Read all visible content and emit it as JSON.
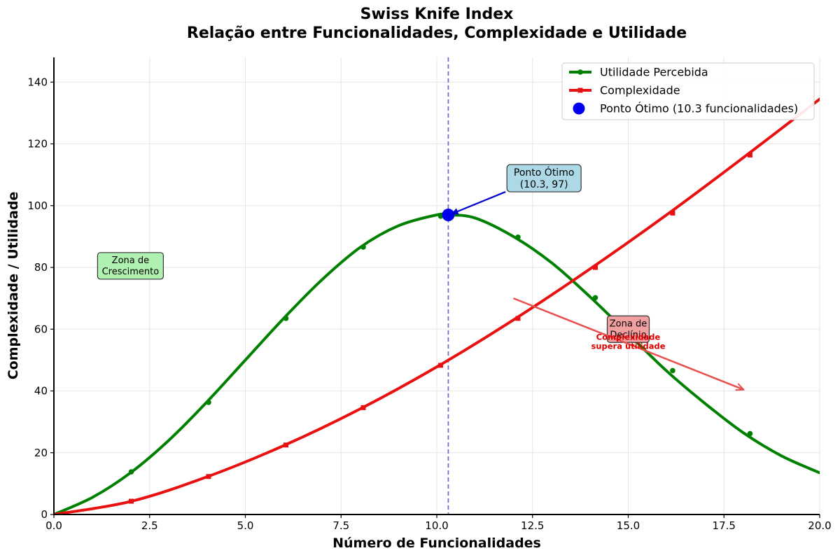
{
  "chart_data": {
    "type": "line",
    "title": [
      "Swiss Knife Index",
      "Relação entre Funcionalidades, Complexidade e Utilidade"
    ],
    "xlabel": "Número de Funcionalidades",
    "ylabel": "Complexidade / Utilidade",
    "xlim": [
      0,
      20
    ],
    "ylim": [
      0,
      148
    ],
    "xticks": [
      0,
      2.5,
      5,
      7.5,
      10,
      12.5,
      15,
      17.5,
      20
    ],
    "xtick_labels": [
      "0.0",
      "2.5",
      "5.0",
      "7.5",
      "10.0",
      "12.5",
      "15.0",
      "17.5",
      "20.0"
    ],
    "yticks": [
      0,
      20,
      40,
      60,
      80,
      100,
      120,
      140
    ],
    "ytick_labels": [
      "0",
      "20",
      "40",
      "60",
      "80",
      "100",
      "120",
      "140"
    ],
    "grid": true,
    "legend_position": "top-right",
    "series": [
      {
        "name": "Utilidade Percebida",
        "color": "#008000",
        "marker": "circle",
        "x": [
          0,
          1,
          2,
          3,
          4,
          5,
          6,
          7,
          8,
          9,
          10,
          10.3,
          11,
          12,
          13,
          14,
          15,
          16,
          17,
          18,
          19,
          20
        ],
        "y": [
          0,
          5.5,
          13.5,
          24,
          36.5,
          50,
          63.5,
          76,
          86.5,
          93.5,
          97,
          97,
          96,
          90,
          81.5,
          70.5,
          58.5,
          46.5,
          36,
          26.5,
          19,
          13.5
        ],
        "marker_x": [
          2.02,
          4.04,
          6.06,
          8.08,
          10.1,
          12.12,
          14.14,
          16.16,
          18.18
        ],
        "marker_y": [
          13.8,
          36.3,
          63.5,
          86.6,
          96.6,
          89.8,
          70.2,
          46.6,
          26.2
        ]
      },
      {
        "name": "Complexidade",
        "color": "#e81010",
        "marker": "square",
        "x": [
          0,
          2,
          4,
          6,
          8,
          10,
          12,
          14,
          16,
          18,
          20
        ],
        "y": [
          0,
          4.2,
          12.2,
          22.3,
          34.2,
          47.8,
          63,
          79.5,
          97,
          115.5,
          134.5
        ],
        "marker_x": [
          2.02,
          4.04,
          6.06,
          8.08,
          10.1,
          12.12,
          14.14,
          16.16,
          18.18
        ],
        "marker_y": [
          4.3,
          12.3,
          22.5,
          34.6,
          48.3,
          63.5,
          80,
          97.6,
          116.4
        ]
      }
    ],
    "optimum": {
      "legend_label": "Ponto Ótimo (10.3 funcionalidades)",
      "x": 10.3,
      "y": 97,
      "color": "#0000ee",
      "annotation_line1": "Ponto Ótimo",
      "annotation_line2": "(10.3, 97)",
      "annotation_at": [
        12.8,
        109
      ]
    },
    "zones": [
      {
        "line1": "Zona de",
        "line2": "Crescimento",
        "at": [
          2.0,
          80.5
        ],
        "color": "#b0f0b0"
      },
      {
        "line1": "Zona de",
        "line2": "Declínio",
        "at": [
          15.0,
          60.0
        ],
        "color": "#f0a0a0"
      }
    ],
    "warning": {
      "line1": "Complexidade",
      "line2": "supera utilidade",
      "at": [
        15.0,
        56.5
      ],
      "color": "#e00000",
      "arrow_from": [
        12,
        70
      ],
      "arrow_to": [
        18,
        40.5
      ]
    }
  }
}
